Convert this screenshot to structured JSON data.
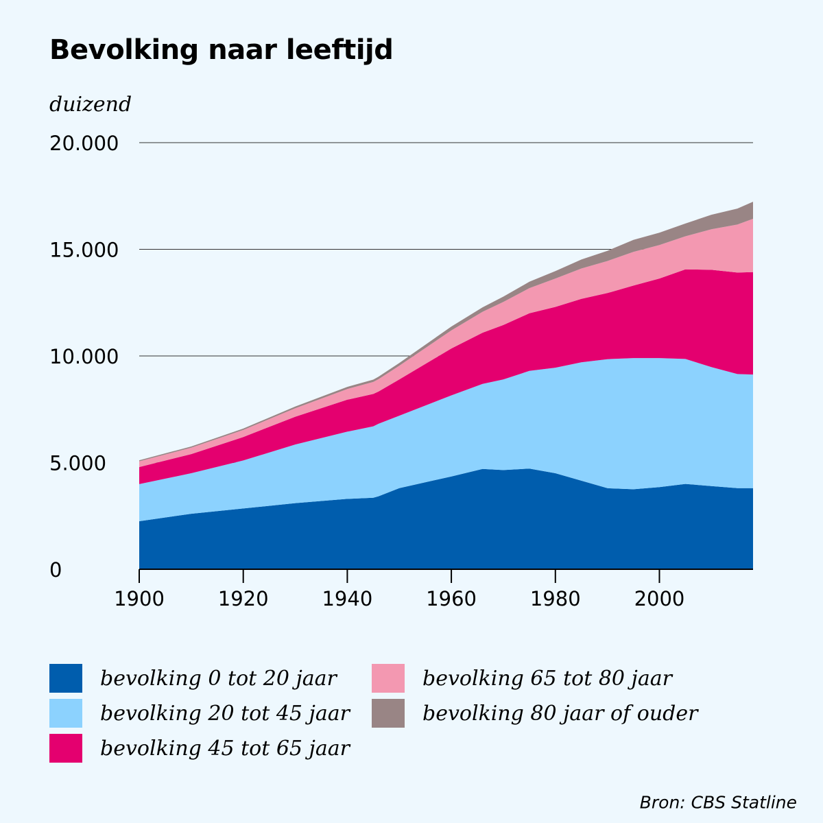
{
  "title": "Bevolking naar leeftijd",
  "unit_label": "duizend",
  "source": "Bron: CBS Statline",
  "chart_data": {
    "type": "area",
    "stacked": true,
    "title": "Bevolking naar leeftijd",
    "ylabel": "duizend",
    "xlim": [
      1900,
      2018
    ],
    "ylim": [
      0,
      20000
    ],
    "x_ticks": [
      1900,
      1920,
      1940,
      1960,
      1980,
      2000
    ],
    "y_ticks": [
      0,
      5000,
      10000,
      15000,
      20000
    ],
    "y_tick_labels": [
      "0",
      "5.000",
      "10.000",
      "15.000",
      "20.000"
    ],
    "grid": "horizontal",
    "legend_position": "bottom",
    "x": [
      1900,
      1910,
      1920,
      1930,
      1940,
      1945,
      1946,
      1950,
      1960,
      1966,
      1970,
      1975,
      1980,
      1985,
      1990,
      1995,
      2000,
      2005,
      2010,
      2015,
      2018
    ],
    "series": [
      {
        "name": "bevolking 0 tot 20 jaar",
        "color": "#005dad",
        "values": [
          2250,
          2600,
          2850,
          3100,
          3300,
          3350,
          3420,
          3800,
          4350,
          4700,
          4650,
          4720,
          4500,
          4150,
          3800,
          3750,
          3850,
          4000,
          3900,
          3800,
          3800
        ]
      },
      {
        "name": "bevolking 20 tot 45 jaar",
        "color": "#8cd2fe",
        "values": [
          1740,
          1900,
          2250,
          2750,
          3150,
          3350,
          3400,
          3400,
          3800,
          3990,
          4250,
          4580,
          4950,
          5550,
          6050,
          6150,
          6050,
          5860,
          5580,
          5350,
          5330
        ]
      },
      {
        "name": "bevolking 45 tot 65 jaar",
        "color": "#e4006f",
        "values": [
          800,
          900,
          1100,
          1300,
          1500,
          1520,
          1510,
          1700,
          2200,
          2400,
          2550,
          2700,
          2850,
          2980,
          3100,
          3400,
          3730,
          4200,
          4560,
          4760,
          4800
        ]
      },
      {
        "name": "bevolking 65 tot 80 jaar",
        "color": "#f398b1",
        "values": [
          270,
          300,
          330,
          400,
          500,
          560,
          580,
          640,
          850,
          980,
          1080,
          1180,
          1330,
          1420,
          1500,
          1580,
          1570,
          1550,
          1900,
          2250,
          2500
        ]
      },
      {
        "name": "bevolking 80 jaar of ouder",
        "color": "#998585",
        "values": [
          50,
          55,
          65,
          80,
          100,
          110,
          115,
          130,
          180,
          210,
          250,
          300,
          350,
          420,
          480,
          560,
          580,
          600,
          680,
          750,
          800
        ]
      }
    ]
  },
  "legend": [
    {
      "label": "bevolking 0 tot 20 jaar",
      "color": "#005dad"
    },
    {
      "label": "bevolking 20 tot 45 jaar",
      "color": "#8cd2fe"
    },
    {
      "label": "bevolking 45 tot 65 jaar",
      "color": "#e4006f"
    },
    {
      "label": "bevolking 65 tot 80 jaar",
      "color": "#f398b1"
    },
    {
      "label": "bevolking 80 jaar of ouder",
      "color": "#998585"
    }
  ]
}
